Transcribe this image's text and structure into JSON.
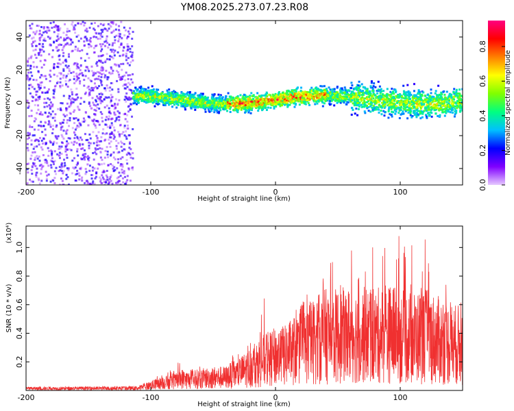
{
  "title": "YM08.2025.273.07.23.R08",
  "chart_data": [
    {
      "type": "heatmap",
      "title": "YM08.2025.273.07.23.R08",
      "xlabel": "Height of straight line (km)",
      "ylabel": "Frequency (Hz)",
      "xlim": [
        -200,
        150
      ],
      "ylim": [
        -50,
        50
      ],
      "xticks": [
        -200,
        -100,
        0,
        100
      ],
      "yticks": [
        -40,
        -20,
        0,
        20,
        40
      ],
      "grid": false,
      "description_bands": [
        {
          "x_range": [
            -200,
            -115
          ],
          "freq_spread_hz": [
            -50,
            50
          ],
          "amplitude_range": [
            0.05,
            0.2
          ]
        },
        {
          "x_range": [
            -115,
            150
          ],
          "centre_hz": [
            0,
            5
          ],
          "halfwidth_hz": 7,
          "amplitude_range": [
            0.2,
            0.95
          ]
        }
      ],
      "colorbar": {
        "label": "Normalized spectral amplitude",
        "ticks": [
          0.0,
          0.2,
          0.4,
          0.6,
          0.8
        ],
        "tick_labels": [
          "0.0",
          "0.2",
          "0.4",
          "0.6",
          "0.8"
        ],
        "range": [
          0,
          0.95
        ],
        "colors": [
          "#e6c9ff",
          "#8000ff",
          "#0000ff",
          "#00c0ff",
          "#00ff80",
          "#80ff00",
          "#ffff00",
          "#ff8000",
          "#ff0000",
          "#ff0080"
        ]
      }
    },
    {
      "type": "line",
      "xlabel": "Height of straight line (km)",
      "ylabel": "SNR (10 * v/v)",
      "yexponent_label": "(x10⁴)",
      "xlim": [
        -200,
        150
      ],
      "ylim": [
        0,
        11500
      ],
      "xticks": [
        -200,
        -100,
        0,
        100
      ],
      "yticks": [
        2000,
        4000,
        6000,
        8000,
        10000
      ],
      "ytick_labels": [
        "0.2",
        "0.4",
        "0.6",
        "0.8",
        "1.0"
      ],
      "grid": false,
      "series": [
        {
          "name": "SNR",
          "color": "#f03030",
          "envelope_x": [
            -200,
            -150,
            -110,
            -100,
            -90,
            -80,
            -75,
            -70,
            -60,
            -50,
            -40,
            -35,
            -30,
            -20,
            -10,
            0,
            10,
            20,
            30,
            40,
            50,
            60,
            70,
            80,
            90,
            100,
            110,
            120,
            130,
            140,
            150
          ],
          "envelope_max": [
            300,
            300,
            320,
            800,
            1300,
            1600,
            2700,
            1500,
            1800,
            2200,
            1800,
            3200,
            2500,
            4200,
            6700,
            4300,
            4600,
            6300,
            7500,
            10100,
            10000,
            10400,
            10900,
            9800,
            10800,
            11000,
            10100,
            11400,
            10300,
            7000,
            6500
          ],
          "envelope_mean": [
            150,
            160,
            180,
            400,
            600,
            700,
            900,
            800,
            900,
            1000,
            1000,
            1200,
            1300,
            1800,
            2300,
            2600,
            2900,
            3300,
            3800,
            4200,
            4200,
            4300,
            4300,
            4200,
            4400,
            4200,
            4100,
            4200,
            3900,
            3600,
            3500
          ]
        }
      ]
    }
  ]
}
